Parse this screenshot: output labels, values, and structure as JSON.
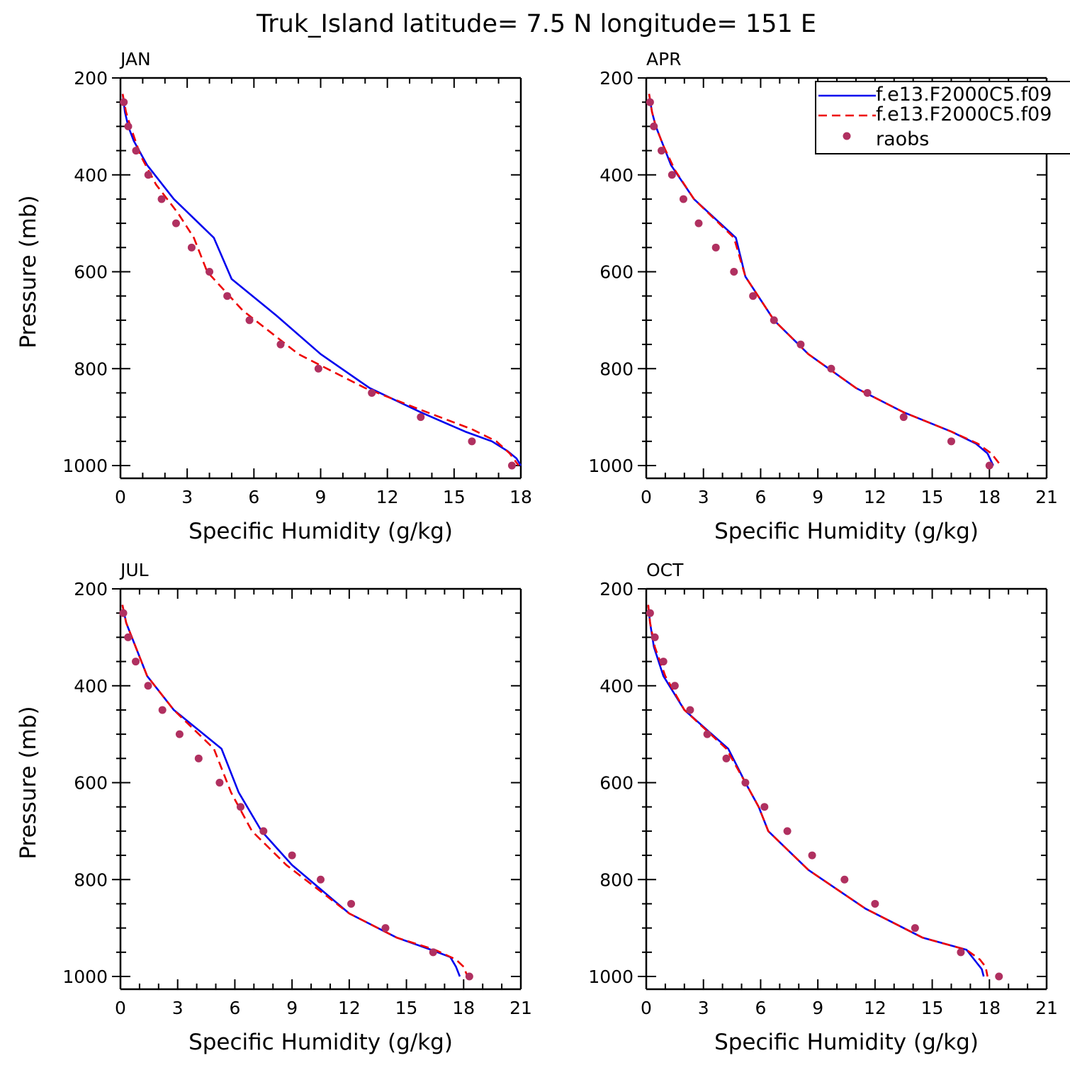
{
  "chart_data": {
    "type": "line",
    "title": "Truk_Island  latitude= 7.5 N longitude= 151 E",
    "colors": {
      "model1": "#0000ee",
      "model2": "#ee0000",
      "raobs": "#b03060"
    },
    "legend": {
      "placement": "top-right of APR panel (clipped at figure edge)",
      "entries": [
        "f.e13.F2000C5.f09",
        "f.e13.F2000C5.f09",
        "raobs"
      ]
    },
    "panels": [
      {
        "label": "JAN",
        "xlabel": "Specific Humidity (g/kg)",
        "ylabel": "Pressure (mb)",
        "xlim": [
          0,
          18
        ],
        "xticks": [
          0,
          3,
          6,
          9,
          12,
          15,
          18
        ],
        "ylim": [
          200,
          1000
        ],
        "y_inverted": true,
        "yticks": [
          200,
          400,
          600,
          800,
          1000
        ],
        "grid": false,
        "series": [
          {
            "name": "f.e13.F2000C5.f09",
            "style": "solid",
            "color": "#0000ee",
            "x": [
              0.1,
              0.2,
              0.35,
              0.6,
              1.2,
              2.4,
              4.2,
              5.0,
              7.0,
              9.0,
              11.2,
              13.5,
              15.5,
              16.7,
              17.4,
              17.8,
              18.0
            ],
            "y": [
              233,
              270,
              300,
              330,
              380,
              450,
              530,
              615,
              690,
              770,
              840,
              890,
              930,
              950,
              970,
              985,
              1000
            ]
          },
          {
            "name": "f.e13.F2000C5.f09",
            "style": "dashed",
            "color": "#ee0000",
            "x": [
              0.1,
              0.25,
              0.45,
              0.9,
              1.6,
              2.6,
              3.3,
              3.9,
              5.5,
              8.0,
              11.0,
              13.5,
              15.8,
              16.9,
              17.5,
              17.9
            ],
            "y": [
              233,
              270,
              300,
              360,
              420,
              480,
              530,
              600,
              680,
              770,
              840,
              885,
              925,
              950,
              975,
              1000
            ]
          },
          {
            "name": "raobs",
            "style": "points",
            "color": "#b03060",
            "x": [
              0.15,
              0.35,
              0.7,
              1.25,
              1.85,
              2.5,
              3.2,
              4.0,
              4.8,
              5.8,
              7.2,
              8.9,
              11.3,
              13.5,
              15.8,
              17.6
            ],
            "y": [
              250,
              300,
              350,
              400,
              450,
              500,
              550,
              600,
              650,
              700,
              750,
              800,
              850,
              900,
              950,
              1000
            ]
          }
        ]
      },
      {
        "label": "APR",
        "xlabel": "Specific Humidity (g/kg)",
        "ylabel": "",
        "xlim": [
          0,
          21
        ],
        "xticks": [
          0,
          3,
          6,
          9,
          12,
          15,
          18,
          21
        ],
        "ylim": [
          200,
          1000
        ],
        "y_inverted": true,
        "yticks": [
          200,
          400,
          600,
          800,
          1000
        ],
        "grid": false,
        "series": [
          {
            "name": "f.e13.F2000C5.f09",
            "style": "solid",
            "color": "#0000ee",
            "x": [
              0.15,
              0.3,
              0.5,
              0.9,
              1.3,
              2.5,
              4.7,
              5.2,
              6.7,
              8.5,
              11.0,
              13.5,
              16.0,
              17.3,
              17.9,
              18.2
            ],
            "y": [
              233,
              270,
              300,
              340,
              380,
              450,
              530,
              610,
              700,
              770,
              840,
              890,
              930,
              955,
              975,
              1000
            ]
          },
          {
            "name": "f.e13.F2000C5.f09",
            "style": "dashed",
            "color": "#ee0000",
            "x": [
              0.15,
              0.3,
              0.5,
              0.9,
              1.5,
              2.5,
              4.6,
              5.2,
              6.7,
              8.5,
              11.0,
              13.5,
              16.0,
              17.4,
              18.1,
              18.6
            ],
            "y": [
              233,
              270,
              300,
              340,
              390,
              450,
              530,
              610,
              700,
              770,
              840,
              890,
              930,
              955,
              975,
              1000
            ]
          },
          {
            "name": "raobs",
            "style": "points",
            "color": "#b03060",
            "x": [
              0.2,
              0.4,
              0.8,
              1.35,
              1.95,
              2.75,
              3.65,
              4.6,
              5.6,
              6.7,
              8.1,
              9.7,
              11.6,
              13.5,
              16.0,
              18.0
            ],
            "y": [
              250,
              300,
              350,
              400,
              450,
              500,
              550,
              600,
              650,
              700,
              750,
              800,
              850,
              900,
              950,
              1000
            ]
          }
        ]
      },
      {
        "label": "JUL",
        "xlabel": "Specific Humidity (g/kg)",
        "ylabel": "Pressure (mb)",
        "xlim": [
          0,
          21
        ],
        "xticks": [
          0,
          3,
          6,
          9,
          12,
          15,
          18,
          21
        ],
        "ylim": [
          200,
          1000
        ],
        "y_inverted": true,
        "yticks": [
          200,
          400,
          600,
          800,
          1000
        ],
        "grid": false,
        "series": [
          {
            "name": "f.e13.F2000C5.f09",
            "style": "solid",
            "color": "#0000ee",
            "x": [
              0.1,
              0.3,
              0.6,
              0.9,
              1.4,
              2.8,
              5.3,
              6.2,
              7.4,
              9.0,
              12.0,
              14.5,
              16.3,
              17.3,
              17.6,
              17.8
            ],
            "y": [
              233,
              270,
              300,
              330,
              380,
              450,
              530,
              620,
              700,
              770,
              870,
              920,
              945,
              960,
              980,
              1000
            ]
          },
          {
            "name": "f.e13.F2000C5.f09",
            "style": "dashed",
            "color": "#ee0000",
            "x": [
              0.1,
              0.3,
              0.6,
              0.9,
              1.4,
              2.8,
              4.9,
              5.8,
              6.9,
              8.7,
              12.0,
              14.5,
              16.5,
              17.6,
              18.0,
              18.2
            ],
            "y": [
              233,
              270,
              300,
              330,
              380,
              450,
              530,
              620,
              700,
              770,
              870,
              920,
              945,
              965,
              980,
              1000
            ]
          },
          {
            "name": "raobs",
            "style": "points",
            "color": "#b03060",
            "x": [
              0.15,
              0.4,
              0.8,
              1.45,
              2.2,
              3.1,
              4.1,
              5.2,
              6.3,
              7.5,
              9.0,
              10.5,
              12.1,
              13.9,
              16.4,
              18.3
            ],
            "y": [
              250,
              300,
              350,
              400,
              450,
              500,
              550,
              600,
              650,
              700,
              750,
              800,
              850,
              900,
              950,
              1000
            ]
          }
        ]
      },
      {
        "label": "OCT",
        "xlabel": "Specific Humidity (g/kg)",
        "ylabel": "",
        "xlim": [
          0,
          21
        ],
        "xticks": [
          0,
          3,
          6,
          9,
          12,
          15,
          18,
          21
        ],
        "ylim": [
          200,
          1000
        ],
        "y_inverted": true,
        "yticks": [
          200,
          400,
          600,
          800,
          1000
        ],
        "grid": false,
        "series": [
          {
            "name": "f.e13.F2000C5.f09",
            "style": "solid",
            "color": "#0000ee",
            "x": [
              0.1,
              0.2,
              0.4,
              0.9,
              2.0,
              4.3,
              5.2,
              5.9,
              6.4,
              8.5,
              11.5,
              14.5,
              16.8,
              17.3,
              17.6,
              17.7
            ],
            "y": [
              233,
              270,
              320,
              380,
              450,
              530,
              600,
              650,
              700,
              780,
              860,
              920,
              945,
              970,
              985,
              1000
            ]
          },
          {
            "name": "f.e13.F2000C5.f09",
            "style": "dashed",
            "color": "#ee0000",
            "x": [
              0.1,
              0.2,
              0.45,
              1.0,
              2.0,
              4.2,
              5.2,
              5.9,
              6.4,
              8.5,
              11.5,
              14.5,
              16.8,
              17.5,
              17.8,
              17.9
            ],
            "y": [
              233,
              270,
              320,
              380,
              450,
              530,
              600,
              650,
              700,
              780,
              860,
              920,
              945,
              965,
              980,
              1000
            ]
          },
          {
            "name": "raobs",
            "style": "points",
            "color": "#b03060",
            "x": [
              0.2,
              0.45,
              0.9,
              1.5,
              2.3,
              3.2,
              4.2,
              5.2,
              6.2,
              7.4,
              8.7,
              10.4,
              12.0,
              14.1,
              16.5,
              18.5
            ],
            "y": [
              250,
              300,
              350,
              400,
              450,
              500,
              550,
              600,
              650,
              700,
              750,
              800,
              850,
              900,
              950,
              1000
            ]
          }
        ]
      }
    ]
  }
}
